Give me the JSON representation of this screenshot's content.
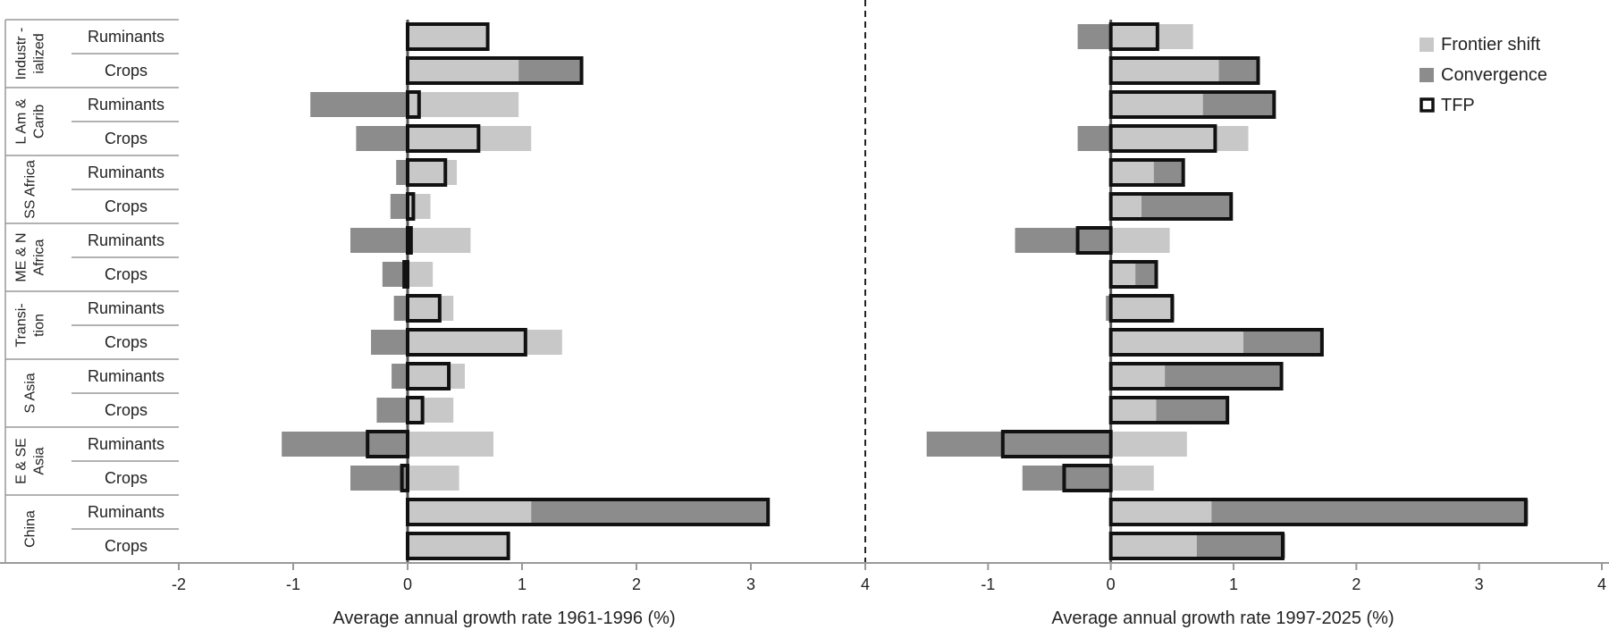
{
  "chart_data": {
    "type": "bar",
    "rows": [
      {
        "region": "Industr-ialized",
        "sector": "Ruminants"
      },
      {
        "region": "Industr-ialized",
        "sector": "Crops"
      },
      {
        "region": "L Am & Carib",
        "sector": "Ruminants"
      },
      {
        "region": "L Am & Carib",
        "sector": "Crops"
      },
      {
        "region": "SS Africa",
        "sector": "Ruminants"
      },
      {
        "region": "SS Africa",
        "sector": "Crops"
      },
      {
        "region": "ME & N Africa",
        "sector": "Ruminants"
      },
      {
        "region": "ME & N Africa",
        "sector": "Crops"
      },
      {
        "region": "Transi-tion",
        "sector": "Ruminants"
      },
      {
        "region": "Transi-tion",
        "sector": "Crops"
      },
      {
        "region": "S Asia",
        "sector": "Ruminants"
      },
      {
        "region": "S Asia",
        "sector": "Crops"
      },
      {
        "region": "E & SE Asia",
        "sector": "Ruminants"
      },
      {
        "region": "E & SE Asia",
        "sector": "Crops"
      },
      {
        "region": "China",
        "sector": "Ruminants"
      },
      {
        "region": "China",
        "sector": "Crops"
      }
    ],
    "regions": [
      {
        "lines": [
          "Industr -",
          "ialized"
        ]
      },
      {
        "lines": [
          "L Am &",
          "Carib"
        ]
      },
      {
        "lines": [
          "SS Africa"
        ]
      },
      {
        "lines": [
          "ME & N",
          "Africa"
        ]
      },
      {
        "lines": [
          "Transi-",
          "tion"
        ]
      },
      {
        "lines": [
          "S Asia"
        ]
      },
      {
        "lines": [
          "E & SE",
          "Asia"
        ]
      },
      {
        "lines": [
          "China"
        ]
      }
    ],
    "legend": {
      "position": "top-right",
      "items": [
        {
          "name": "Frontier shift",
          "color": "#c8c8c8"
        },
        {
          "name": "Convergence",
          "color": "#8c8c8c"
        },
        {
          "name": "TFP",
          "color": "#111111"
        }
      ]
    },
    "panels": [
      {
        "xlabel": "Average annual growth rate 1961-1996  (%)",
        "xlim": [
          -2,
          4
        ],
        "ticks": [
          -2,
          -1,
          0,
          1,
          2,
          3,
          4
        ],
        "series": [
          {
            "name": "Frontier shift",
            "values": [
              0.7,
              0.97,
              0.97,
              1.08,
              0.43,
              0.2,
              0.55,
              0.22,
              0.4,
              1.35,
              0.5,
              0.4,
              0.75,
              0.45,
              1.08,
              0.88
            ]
          },
          {
            "name": "Convergence",
            "values": [
              0.0,
              0.55,
              -0.85,
              -0.45,
              -0.1,
              -0.15,
              -0.5,
              -0.22,
              -0.12,
              -0.32,
              -0.14,
              -0.27,
              -1.1,
              -0.5,
              2.07,
              0.0
            ]
          },
          {
            "name": "TFP",
            "values": [
              0.7,
              1.52,
              0.1,
              0.62,
              0.33,
              0.05,
              0.03,
              -0.03,
              0.28,
              1.03,
              0.36,
              0.13,
              -0.35,
              -0.05,
              3.15,
              0.88
            ]
          }
        ]
      },
      {
        "xlabel": "Average annual growth rate 1997-2025 (%)",
        "xlim": [
          -2,
          4
        ],
        "ticks": [
          -1,
          0,
          1,
          2,
          3,
          4
        ],
        "series": [
          {
            "name": "Frontier shift",
            "values": [
              0.67,
              0.88,
              0.75,
              1.12,
              0.35,
              0.25,
              0.48,
              0.2,
              0.52,
              1.08,
              0.44,
              0.37,
              0.62,
              0.35,
              0.82,
              0.7
            ]
          },
          {
            "name": "Convergence",
            "values": [
              -0.27,
              0.32,
              0.58,
              -0.27,
              0.24,
              0.73,
              -0.78,
              0.16,
              -0.04,
              0.64,
              0.95,
              0.58,
              -1.5,
              -0.72,
              2.58,
              0.72
            ]
          },
          {
            "name": "TFP",
            "values": [
              0.38,
              1.2,
              1.33,
              0.85,
              0.59,
              0.98,
              -0.27,
              0.37,
              0.5,
              1.72,
              1.39,
              0.95,
              -0.88,
              -0.38,
              3.38,
              1.4
            ]
          }
        ]
      }
    ]
  }
}
